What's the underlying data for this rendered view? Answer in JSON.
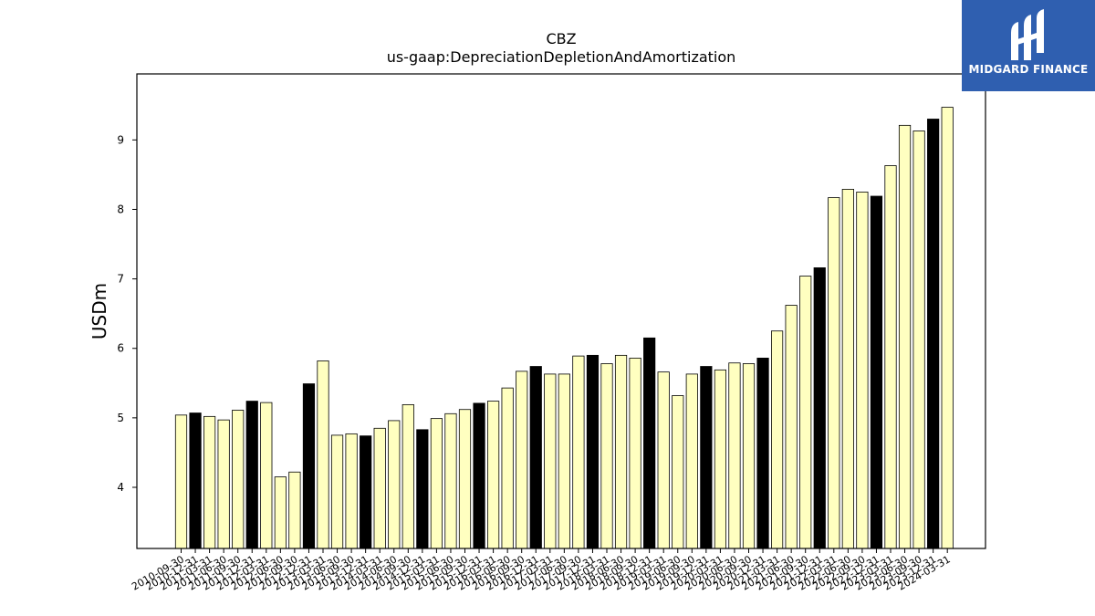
{
  "chart_data": {
    "type": "bar",
    "title": "CBZ",
    "subtitle": "us-gaap:DepreciationDepletionAndAmortization",
    "xlabel": "",
    "ylabel": "USDm",
    "ylim": [
      3.12,
      9.95
    ],
    "yticks": [
      4,
      5,
      6,
      7,
      8,
      9
    ],
    "grid": false,
    "colors": {
      "default": "#ffffc0",
      "highlight": "#000000",
      "edge": "#000000"
    },
    "categories": [
      "2010-09-30",
      "2010-12-31",
      "2011-03-31",
      "2011-06-30",
      "2011-09-30",
      "2011-12-31",
      "2012-03-31",
      "2012-06-30",
      "2012-09-30",
      "2012-12-31",
      "2013-03-31",
      "2013-06-30",
      "2013-09-30",
      "2013-12-31",
      "2014-03-31",
      "2014-06-30",
      "2014-09-30",
      "2014-12-31",
      "2015-03-31",
      "2015-06-30",
      "2015-09-30",
      "2015-12-31",
      "2016-03-31",
      "2016-06-30",
      "2016-09-30",
      "2016-12-31",
      "2017-03-31",
      "2017-06-30",
      "2017-09-30",
      "2017-12-31",
      "2018-03-31",
      "2018-06-30",
      "2018-09-30",
      "2018-12-31",
      "2019-03-31",
      "2019-06-30",
      "2019-09-30",
      "2019-12-31",
      "2020-03-31",
      "2020-06-30",
      "2020-09-30",
      "2020-12-31",
      "2021-03-31",
      "2021-06-30",
      "2021-09-30",
      "2021-12-31",
      "2022-03-31",
      "2022-06-30",
      "2022-09-30",
      "2022-12-31",
      "2023-03-31",
      "2023-06-30",
      "2023-09-30",
      "2023-12-31",
      "2024-03-31"
    ],
    "values": [
      5.04,
      5.07,
      5.02,
      4.97,
      5.11,
      5.24,
      5.22,
      4.15,
      4.22,
      5.49,
      5.82,
      4.75,
      4.77,
      4.74,
      4.85,
      4.96,
      5.19,
      4.83,
      4.99,
      5.06,
      5.12,
      5.21,
      5.24,
      5.43,
      5.67,
      5.74,
      5.63,
      5.63,
      5.89,
      5.9,
      5.78,
      5.9,
      5.86,
      6.15,
      5.66,
      5.32,
      5.63,
      5.74,
      5.69,
      5.79,
      5.78,
      5.86,
      6.25,
      6.62,
      7.04,
      7.16,
      8.17,
      8.29,
      8.25,
      8.19,
      8.63,
      9.21,
      9.13,
      9.3,
      9.47
    ],
    "highlight_indices": [
      1,
      5,
      9,
      13,
      17,
      21,
      25,
      29,
      33,
      37,
      41,
      45,
      49,
      53
    ]
  },
  "logo": {
    "text": "MIDGARD FINANCE",
    "icon": "midgard-logo-icon"
  }
}
